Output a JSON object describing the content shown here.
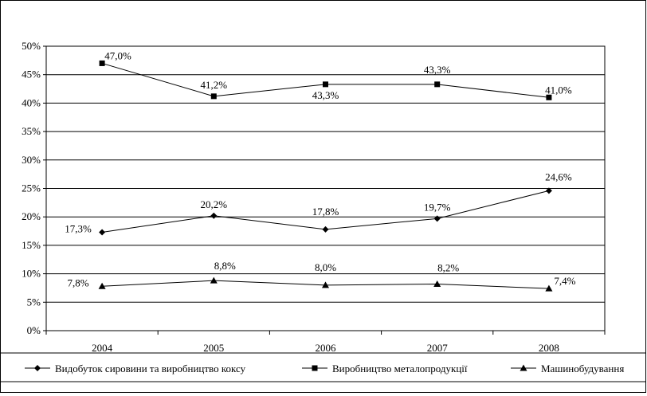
{
  "chart_data": {
    "type": "line",
    "categories": [
      "2004",
      "2005",
      "2006",
      "2007",
      "2008"
    ],
    "y_ticks": [
      "0%",
      "5%",
      "10%",
      "15%",
      "20%",
      "25%",
      "30%",
      "35%",
      "40%",
      "45%",
      "50%"
    ],
    "ylim": [
      0,
      50
    ],
    "grid": "horizontal",
    "legend_position": "bottom",
    "series": [
      {
        "name": "Видобуток сировини та виробництво коксу",
        "marker": "diamond",
        "values": [
          17.3,
          20.2,
          17.8,
          19.7,
          24.6
        ],
        "labels": [
          "17,3%",
          "20,2%",
          "17,8%",
          "19,7%",
          "24,6%"
        ]
      },
      {
        "name": "Виробництво металопродукції",
        "marker": "square",
        "values": [
          47.0,
          41.2,
          43.3,
          43.3,
          41.0
        ],
        "labels": [
          "47,0%",
          "41,2%",
          "43,3%",
          "43,3%",
          "41,0%"
        ]
      },
      {
        "name": "Машинобудування",
        "marker": "triangle",
        "values": [
          7.8,
          8.8,
          8.0,
          8.2,
          7.4
        ],
        "labels": [
          "7,8%",
          "8,8%",
          "8,0%",
          "8,2%",
          "7,4%"
        ]
      }
    ]
  }
}
